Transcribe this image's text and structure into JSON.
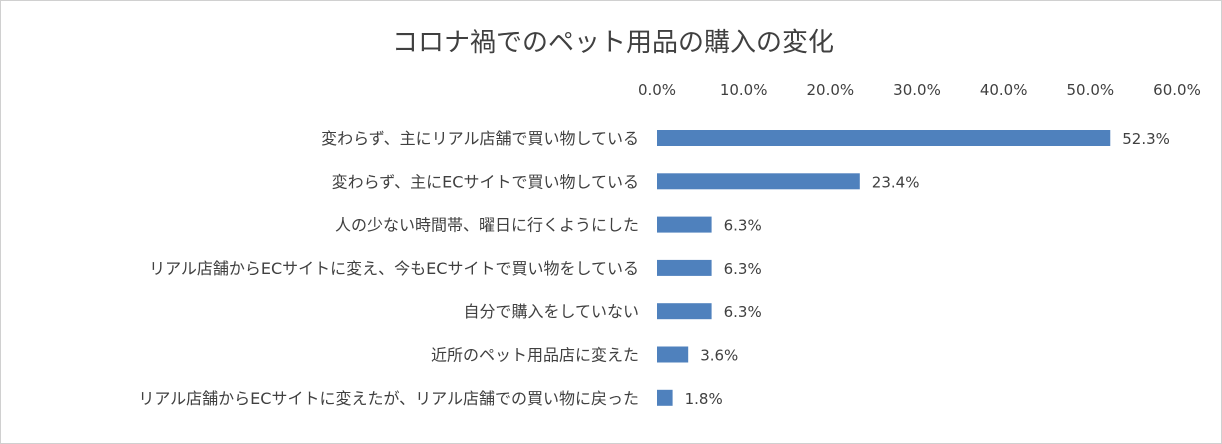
{
  "chart_data": {
    "type": "bar",
    "orientation": "horizontal",
    "title": "コロナ禍でのペット用品の購入の変化",
    "xlabel": "",
    "ylabel": "",
    "xlim": [
      0,
      60
    ],
    "xticks": [
      "0.0%",
      "10.0%",
      "20.0%",
      "30.0%",
      "40.0%",
      "50.0%",
      "60.0%"
    ],
    "x_axis_position": "top",
    "grid": false,
    "legend": "none",
    "bar_color": "#4F81BD",
    "categories": [
      "変わらず、主にリアル店舗で買い物している",
      "変わらず、主にECサイトで買い物している",
      "人の少ない時間帯、曜日に行くようにした",
      "リアル店舗からECサイトに変え、今もECサイトで買い物をしている",
      "自分で購入をしていない",
      "近所のペット用品店に変えた",
      "リアル店舗からECサイトに変えたが、リアル店舗での買い物に戻った"
    ],
    "values": [
      52.3,
      23.4,
      6.3,
      6.3,
      6.3,
      3.6,
      1.8
    ],
    "data_labels": [
      "52.3%",
      "23.4%",
      "6.3%",
      "6.3%",
      "6.3%",
      "3.6%",
      "1.8%"
    ]
  }
}
